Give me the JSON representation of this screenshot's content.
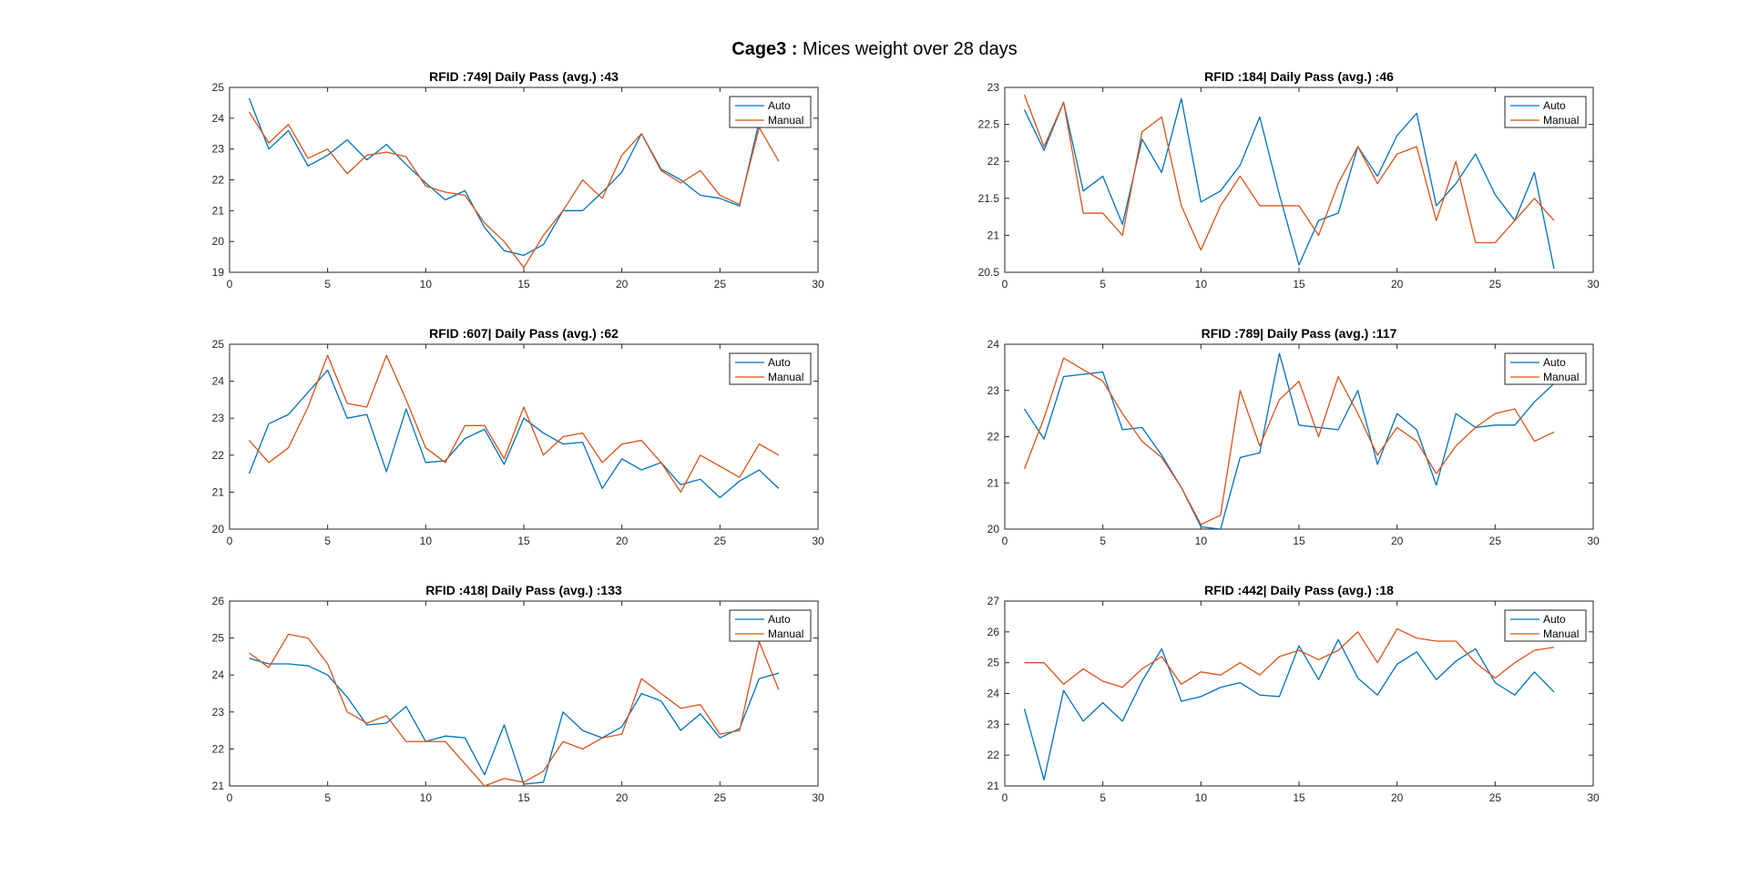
{
  "figure": {
    "title_bold": "Cage3 :",
    "title_rest": " Mices weight over 28 days"
  },
  "colors": {
    "auto": "#0072BD",
    "manual": "#D95319"
  },
  "chart_data": [
    {
      "type": "line",
      "title": "RFID :749| Daily Pass (avg.) :43",
      "xlim": [
        0,
        30
      ],
      "ylim": [
        19,
        25
      ],
      "xticks": [
        0,
        5,
        10,
        15,
        20,
        25,
        30
      ],
      "yticks": [
        19,
        20,
        21,
        22,
        23,
        24,
        25
      ],
      "legend": "top-right",
      "series": [
        {
          "name": "Auto",
          "color": "#0072BD",
          "x": [
            1,
            2,
            3,
            4,
            5,
            6,
            7,
            8,
            9,
            10,
            11,
            12,
            13,
            14,
            15,
            16,
            17,
            18,
            19,
            20,
            21,
            22,
            23,
            24,
            25,
            26,
            27
          ],
          "y": [
            24.65,
            23.0,
            23.6,
            22.45,
            22.8,
            23.3,
            22.65,
            23.15,
            22.5,
            21.9,
            21.35,
            21.65,
            20.45,
            19.7,
            19.55,
            19.9,
            21.0,
            21.0,
            21.6,
            22.25,
            23.5,
            22.35,
            22.0,
            21.5,
            21.4,
            21.15,
            23.9
          ]
        },
        {
          "name": "Manual",
          "color": "#D95319",
          "x": [
            1,
            2,
            3,
            4,
            5,
            6,
            7,
            8,
            9,
            10,
            11,
            12,
            13,
            14,
            15,
            16,
            17,
            18,
            19,
            20,
            21,
            22,
            23,
            24,
            25,
            26,
            27,
            28
          ],
          "y": [
            24.2,
            23.2,
            23.8,
            22.7,
            23.0,
            22.2,
            22.8,
            22.9,
            22.75,
            21.8,
            21.6,
            21.5,
            20.6,
            20.0,
            19.15,
            20.2,
            21.0,
            22.0,
            21.4,
            22.8,
            23.5,
            22.3,
            21.9,
            22.3,
            21.5,
            21.2,
            23.7,
            22.6
          ]
        }
      ]
    },
    {
      "type": "line",
      "title": "RFID :184| Daily Pass (avg.) :46",
      "xlim": [
        0,
        30
      ],
      "ylim": [
        20.5,
        23
      ],
      "xticks": [
        0,
        5,
        10,
        15,
        20,
        25,
        30
      ],
      "yticks": [
        20.5,
        21,
        21.5,
        22,
        22.5,
        23
      ],
      "legend": "top-right",
      "series": [
        {
          "name": "Auto",
          "color": "#0072BD",
          "x": [
            1,
            2,
            3,
            4,
            5,
            6,
            7,
            8,
            9,
            10,
            11,
            12,
            13,
            14,
            15,
            16,
            17,
            18,
            19,
            20,
            21,
            22,
            23,
            24,
            25,
            26,
            27,
            28
          ],
          "y": [
            22.7,
            22.15,
            22.8,
            21.6,
            21.8,
            21.15,
            22.3,
            21.85,
            22.85,
            21.45,
            21.6,
            21.95,
            22.6,
            21.55,
            20.6,
            21.2,
            21.3,
            22.2,
            21.8,
            22.35,
            22.65,
            21.4,
            21.7,
            22.1,
            21.55,
            21.2,
            21.85,
            20.55
          ]
        },
        {
          "name": "Manual",
          "color": "#D95319",
          "x": [
            1,
            2,
            3,
            4,
            5,
            6,
            7,
            8,
            9,
            10,
            11,
            12,
            13,
            14,
            15,
            16,
            17,
            18,
            19,
            20,
            21,
            22,
            23,
            24,
            25,
            26,
            27,
            28
          ],
          "y": [
            22.9,
            22.2,
            22.8,
            21.3,
            21.3,
            21.0,
            22.4,
            22.6,
            21.4,
            20.8,
            21.4,
            21.8,
            21.4,
            21.4,
            21.4,
            21.0,
            21.7,
            22.2,
            21.7,
            22.1,
            22.2,
            21.2,
            22.0,
            20.9,
            20.9,
            21.2,
            21.5,
            21.2
          ]
        }
      ]
    },
    {
      "type": "line",
      "title": "RFID :607| Daily Pass (avg.) :62",
      "xlim": [
        0,
        30
      ],
      "ylim": [
        20,
        25
      ],
      "xticks": [
        0,
        5,
        10,
        15,
        20,
        25,
        30
      ],
      "yticks": [
        20,
        21,
        22,
        23,
        24,
        25
      ],
      "legend": "top-right",
      "series": [
        {
          "name": "Auto",
          "color": "#0072BD",
          "x": [
            1,
            2,
            3,
            4,
            5,
            6,
            7,
            8,
            9,
            10,
            11,
            12,
            13,
            14,
            15,
            16,
            17,
            18,
            19,
            20,
            21,
            22,
            23,
            24,
            25,
            26,
            27,
            28
          ],
          "y": [
            21.5,
            22.85,
            23.1,
            23.7,
            24.3,
            23.0,
            23.1,
            21.55,
            23.25,
            21.8,
            21.85,
            22.45,
            22.7,
            21.75,
            23.0,
            22.6,
            22.3,
            22.35,
            21.1,
            21.9,
            21.6,
            21.8,
            21.2,
            21.35,
            20.85,
            21.3,
            21.6,
            21.1
          ]
        },
        {
          "name": "Manual",
          "color": "#D95319",
          "x": [
            1,
            2,
            3,
            4,
            5,
            6,
            7,
            8,
            9,
            10,
            11,
            12,
            13,
            14,
            15,
            16,
            17,
            18,
            19,
            20,
            21,
            22,
            23,
            24,
            25,
            26,
            27,
            28
          ],
          "y": [
            22.4,
            21.8,
            22.2,
            23.3,
            24.7,
            23.4,
            23.3,
            24.7,
            23.5,
            22.2,
            21.8,
            22.8,
            22.8,
            21.9,
            23.3,
            22.0,
            22.5,
            22.6,
            21.8,
            22.3,
            22.4,
            21.8,
            21.0,
            22.0,
            21.7,
            21.4,
            22.3,
            22.0
          ]
        }
      ]
    },
    {
      "type": "line",
      "title": "RFID :789| Daily Pass (avg.) :117",
      "xlim": [
        0,
        30
      ],
      "ylim": [
        20,
        24
      ],
      "xticks": [
        0,
        5,
        10,
        15,
        20,
        25,
        30
      ],
      "yticks": [
        20,
        21,
        22,
        23,
        24
      ],
      "legend": "top-right",
      "series": [
        {
          "name": "Auto",
          "color": "#0072BD",
          "x": [
            1,
            2,
            3,
            4,
            5,
            6,
            7,
            8,
            9,
            10,
            11,
            12,
            13,
            14,
            15,
            16,
            17,
            18,
            19,
            20,
            21,
            22,
            23,
            24,
            25,
            26,
            27,
            28
          ],
          "y": [
            22.6,
            21.95,
            23.3,
            23.35,
            23.4,
            22.15,
            22.2,
            21.6,
            20.9,
            20.05,
            20.0,
            21.55,
            21.65,
            23.8,
            22.25,
            22.2,
            22.15,
            23.0,
            21.4,
            22.5,
            22.15,
            20.95,
            22.5,
            22.2,
            22.25,
            22.25,
            22.75,
            23.15
          ]
        },
        {
          "name": "Manual",
          "color": "#D95319",
          "x": [
            1,
            2,
            3,
            4,
            5,
            6,
            7,
            8,
            9,
            10,
            11,
            12,
            13,
            14,
            15,
            16,
            17,
            18,
            19,
            20,
            21,
            22,
            23,
            24,
            25,
            26,
            27,
            28
          ],
          "y": [
            21.3,
            22.4,
            23.7,
            23.45,
            23.2,
            22.5,
            21.9,
            21.55,
            20.9,
            20.1,
            20.3,
            23.0,
            21.8,
            22.8,
            23.2,
            22.0,
            23.3,
            22.5,
            21.6,
            22.2,
            21.9,
            21.2,
            21.8,
            22.2,
            22.5,
            22.6,
            21.9,
            22.1
          ]
        }
      ]
    },
    {
      "type": "line",
      "title": "RFID :418| Daily Pass (avg.) :133",
      "xlim": [
        0,
        30
      ],
      "ylim": [
        21,
        26
      ],
      "xticks": [
        0,
        5,
        10,
        15,
        20,
        25,
        30
      ],
      "yticks": [
        21,
        22,
        23,
        24,
        25,
        26
      ],
      "legend": "top-right",
      "series": [
        {
          "name": "Auto",
          "color": "#0072BD",
          "x": [
            1,
            2,
            3,
            4,
            5,
            6,
            7,
            8,
            9,
            10,
            11,
            12,
            13,
            14,
            15,
            16,
            17,
            18,
            19,
            20,
            21,
            22,
            23,
            24,
            25,
            26,
            27,
            28
          ],
          "y": [
            24.45,
            24.3,
            24.3,
            24.25,
            24.0,
            23.4,
            22.65,
            22.7,
            23.15,
            22.2,
            22.35,
            22.3,
            21.3,
            22.65,
            21.05,
            21.1,
            23.0,
            22.5,
            22.3,
            22.6,
            23.5,
            23.3,
            22.5,
            22.95,
            22.3,
            22.55,
            23.9,
            24.05
          ]
        },
        {
          "name": "Manual",
          "color": "#D95319",
          "x": [
            1,
            2,
            3,
            4,
            5,
            6,
            7,
            8,
            9,
            10,
            11,
            12,
            13,
            14,
            15,
            16,
            17,
            18,
            19,
            20,
            21,
            22,
            23,
            24,
            25,
            26,
            27,
            28
          ],
          "y": [
            24.6,
            24.2,
            25.1,
            25.0,
            24.3,
            23.0,
            22.7,
            22.9,
            22.2,
            22.2,
            22.2,
            21.6,
            21.0,
            21.2,
            21.1,
            21.4,
            22.2,
            22.0,
            22.3,
            22.4,
            23.9,
            23.5,
            23.1,
            23.2,
            22.4,
            22.5,
            24.9,
            23.6
          ]
        }
      ]
    },
    {
      "type": "line",
      "title": "RFID :442| Daily Pass (avg.) :18",
      "xlim": [
        0,
        30
      ],
      "ylim": [
        21,
        27
      ],
      "xticks": [
        0,
        5,
        10,
        15,
        20,
        25,
        30
      ],
      "yticks": [
        21,
        22,
        23,
        24,
        25,
        26,
        27
      ],
      "legend": "top-right",
      "series": [
        {
          "name": "Auto",
          "color": "#0072BD",
          "x": [
            1,
            2,
            3,
            4,
            5,
            6,
            7,
            8,
            9,
            10,
            11,
            12,
            13,
            14,
            15,
            16,
            17,
            18,
            19,
            20,
            21,
            22,
            23,
            24,
            25,
            26,
            27,
            28
          ],
          "y": [
            23.5,
            21.2,
            24.1,
            23.1,
            23.7,
            23.1,
            24.4,
            25.45,
            23.75,
            23.9,
            24.2,
            24.35,
            23.95,
            23.9,
            25.55,
            24.45,
            25.75,
            24.5,
            23.95,
            24.95,
            25.35,
            24.45,
            25.05,
            25.45,
            24.35,
            23.95,
            24.7,
            24.05
          ]
        },
        {
          "name": "Manual",
          "color": "#D95319",
          "x": [
            1,
            2,
            3,
            4,
            5,
            6,
            7,
            8,
            9,
            10,
            11,
            12,
            13,
            14,
            15,
            16,
            17,
            18,
            19,
            20,
            21,
            22,
            23,
            24,
            25,
            26,
            27,
            28
          ],
          "y": [
            25.0,
            25.0,
            24.3,
            24.8,
            24.4,
            24.2,
            24.8,
            25.2,
            24.3,
            24.7,
            24.6,
            25.0,
            24.6,
            25.2,
            25.4,
            25.1,
            25.4,
            26.0,
            25.0,
            26.1,
            25.8,
            25.7,
            25.7,
            25.0,
            24.5,
            25.0,
            25.4,
            25.5
          ]
        }
      ]
    }
  ]
}
